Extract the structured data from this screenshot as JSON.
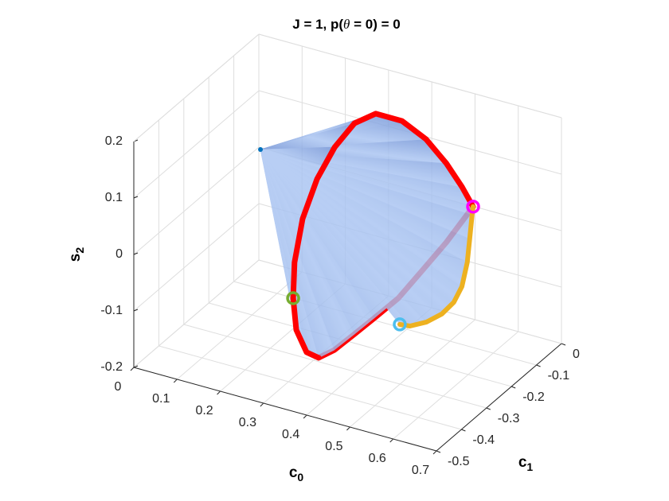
{
  "chart_data": {
    "type": "line3d",
    "title": [
      "J = 1, p(",
      "θ",
      " = 0) = 0"
    ],
    "xlabel": [
      "c",
      "0"
    ],
    "ylabel": [
      "c",
      "1"
    ],
    "zlabel": [
      "s",
      "2"
    ],
    "xlim": [
      0,
      0.7
    ],
    "ylim": [
      -0.5,
      0
    ],
    "zlim": [
      -0.2,
      0.2
    ],
    "xticks": [
      0,
      0.1,
      0.2,
      0.3,
      0.4,
      0.5,
      0.6,
      0.7
    ],
    "yticks": [
      0,
      -0.1,
      -0.2,
      -0.3,
      -0.4,
      -0.5
    ],
    "zticks": [
      -0.2,
      -0.1,
      0,
      0.1,
      0.2
    ],
    "grid": true,
    "surface": {
      "color": "#6d8fd4",
      "apex": {
        "c0": 0.238,
        "c1": -0.405,
        "s2": 0.2
      }
    },
    "series": [
      {
        "color": "#ff0000",
        "c0": [
          0.554,
          0.529,
          0.487,
          0.426,
          0.37,
          0.309,
          0.28,
          0.271,
          0.259,
          0.257,
          0.263,
          0.276,
          0.3,
          0.329,
          0.35,
          0.373,
          0.399,
          0.424,
          0.46,
          0.48,
          0.511,
          0.554
        ],
        "c1": [
          -0.101,
          -0.102,
          -0.093,
          -0.068,
          -0.067,
          -0.067,
          -0.102,
          -0.165,
          -0.215,
          -0.269,
          -0.312,
          -0.34,
          -0.369,
          -0.378,
          -0.366,
          -0.343,
          -0.307,
          -0.271,
          -0.238,
          -0.176,
          -0.134,
          -0.101
        ],
        "s2": [
          0.05,
          0.08,
          0.11,
          0.13,
          0.15,
          0.15,
          0.14,
          0.12,
          0.08,
          0.03,
          -0.03,
          -0.08,
          -0.12,
          -0.15,
          -0.16,
          -0.15,
          -0.13,
          -0.11,
          -0.08,
          -0.05,
          -0.01,
          0.05
        ]
      },
      {
        "color": "#edb120",
        "c0": [
          0.47,
          0.497,
          0.529,
          0.557,
          0.577,
          0.582,
          0.577,
          0.567,
          0.557,
          0.554
        ],
        "c1": [
          -0.249,
          -0.255,
          -0.245,
          -0.231,
          -0.218,
          -0.194,
          -0.164,
          -0.137,
          -0.11,
          -0.101
        ],
        "s2": [
          -0.12,
          -0.115,
          -0.105,
          -0.09,
          -0.07,
          -0.05,
          -0.02,
          0.01,
          0.04,
          0.05
        ]
      }
    ],
    "markers": [
      {
        "color": "#0072bd",
        "c0": 0.238,
        "c1": -0.405,
        "s2": 0.2,
        "size": 3
      },
      {
        "color": "#ff00ff",
        "c0": 0.554,
        "c1": -0.101,
        "s2": 0.05,
        "size": 7
      },
      {
        "color": "#77ac30",
        "c0": 0.276,
        "c1": -0.34,
        "s2": -0.08,
        "size": 7
      },
      {
        "color": "#4dbeee",
        "c0": 0.47,
        "c1": -0.249,
        "s2": -0.12,
        "size": 7
      }
    ]
  }
}
